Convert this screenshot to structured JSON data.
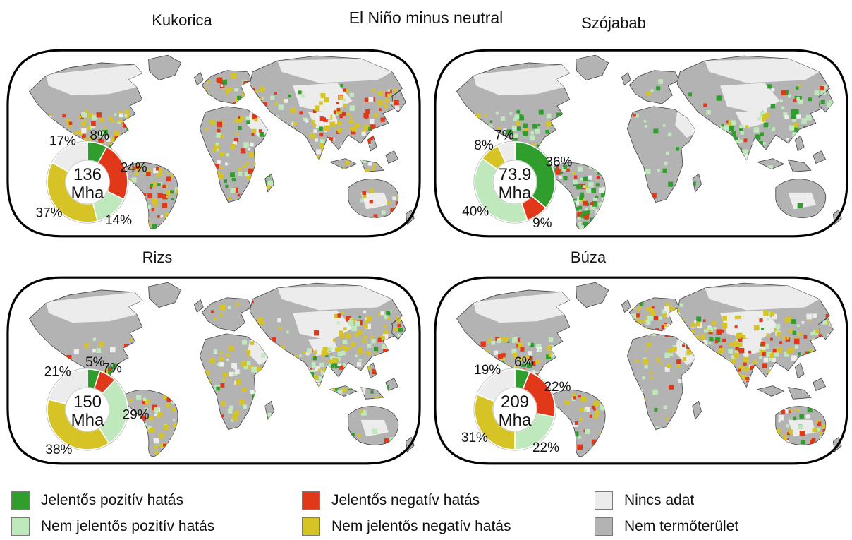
{
  "figure_title": "El Niño minus neutral",
  "colors": {
    "sig_pos": "#2f9e2c",
    "nonsig_pos": "#bfe8bd",
    "sig_neg": "#e03818",
    "nonsig_neg": "#d6c326",
    "no_data": "#ececec",
    "non_cropland": "#b3b3b3",
    "map_outline": "#000000",
    "land_stroke": "#3f3f3f"
  },
  "slice_order": [
    "sig_pos",
    "sig_neg",
    "nonsig_pos",
    "nonsig_neg",
    "no_data"
  ],
  "chart_data": [
    {
      "type": "pie",
      "title": "Kukorica",
      "center_value": "136",
      "center_unit": "Mha",
      "categories": [
        "Jelentős pozitív hatás",
        "Jelentős negatív hatás",
        "Nem jelentős pozitív hatás",
        "Nem jelentős negatív hatás",
        "Nincs adat"
      ],
      "values": [
        8,
        24,
        14,
        37,
        17
      ],
      "labels": [
        "8%",
        "24%",
        "14%",
        "37%",
        "17%"
      ]
    },
    {
      "type": "pie",
      "title": "Szójabab",
      "center_value": "73.9",
      "center_unit": "Mha",
      "categories": [
        "Jelentős pozitív hatás",
        "Jelentős negatív hatás",
        "Nem jelentős pozitív hatás",
        "Nem jelentős negatív hatás",
        "Nincs adat"
      ],
      "values": [
        36,
        9,
        40,
        8,
        7
      ],
      "labels": [
        "36%",
        "9%",
        "40%",
        "8%",
        "7%"
      ]
    },
    {
      "type": "pie",
      "title": "Rizs",
      "center_value": "150",
      "center_unit": "Mha",
      "categories": [
        "Jelentős pozitív hatás",
        "Jelentős negatív hatás",
        "Nem jelentős pozitív hatás",
        "Nem jelentős negatív hatás",
        "Nincs adat"
      ],
      "values": [
        5,
        7,
        29,
        38,
        21
      ],
      "labels": [
        "5%",
        "7%",
        "29%",
        "38%",
        "21%"
      ]
    },
    {
      "type": "pie",
      "title": "Búza",
      "center_value": "209",
      "center_unit": "Mha",
      "categories": [
        "Jelentős pozitív hatás",
        "Jelentős negatív hatás",
        "Nem jelentős pozitív hatás",
        "Nem jelentős negatív hatás",
        "Nincs adat"
      ],
      "values": [
        6,
        22,
        22,
        31,
        19
      ],
      "labels": [
        "6%",
        "22%",
        "22%",
        "31%",
        "19%"
      ]
    }
  ],
  "legend": {
    "items": [
      {
        "label": "Jelentős pozitív hatás",
        "color_key": "sig_pos"
      },
      {
        "label": "Nem jelentős pozitív hatás",
        "color_key": "nonsig_pos"
      },
      {
        "label": "Jelentős negatív hatás",
        "color_key": "sig_neg"
      },
      {
        "label": "Nem jelentős negatív hatás",
        "color_key": "nonsig_neg"
      },
      {
        "label": "Nincs adat",
        "color_key": "no_data"
      },
      {
        "label": "Nem termőterület",
        "color_key": "non_cropland"
      }
    ]
  }
}
